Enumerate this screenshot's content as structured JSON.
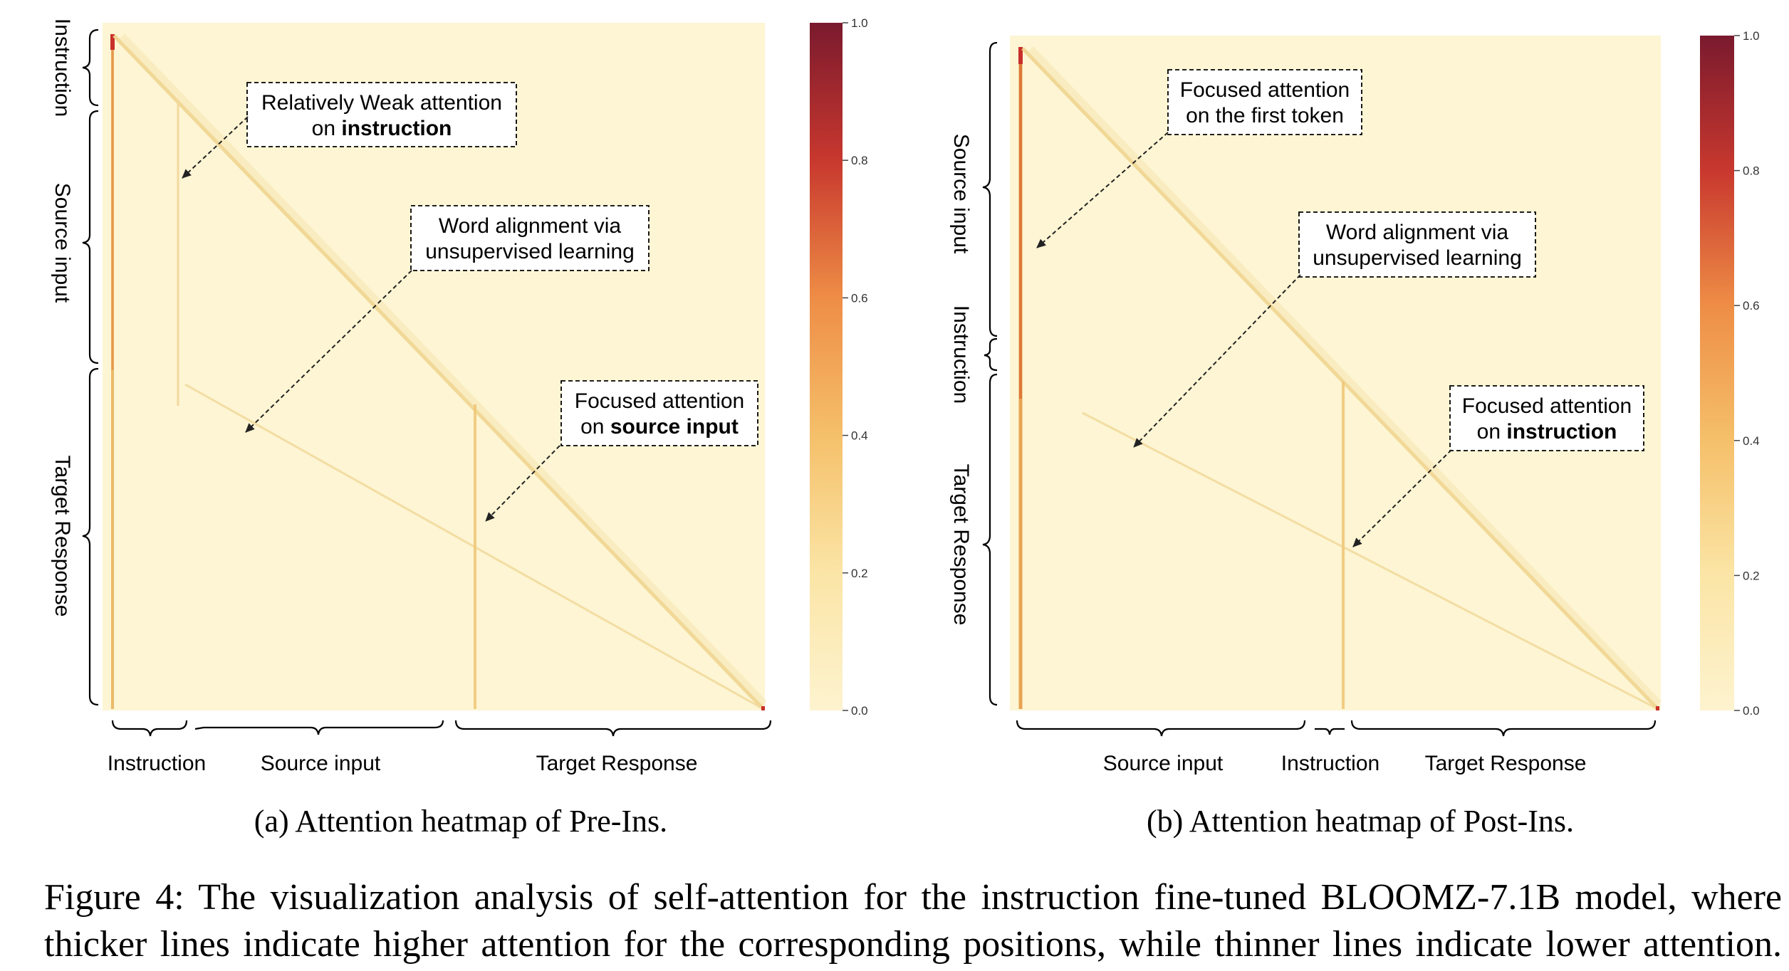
{
  "panels": [
    {
      "id": "a",
      "subcaption": "(a) Attention heatmap of Pre-Ins.",
      "y_groups": [
        "Instruction",
        "Source input",
        "Target Response"
      ],
      "x_groups": [
        "Instruction",
        "Source input",
        "Target Response"
      ],
      "annotations": [
        {
          "lines": [
            [
              "Relatively Weak attention"
            ],
            [
              "on ",
              "instruction"
            ]
          ],
          "bold_last": true
        },
        {
          "lines": [
            [
              "Word alignment via"
            ],
            [
              "unsupervised learning"
            ]
          ],
          "bold_last": false
        },
        {
          "lines": [
            [
              "Focused attention"
            ],
            [
              "on ",
              "source input"
            ]
          ],
          "bold_last": true
        }
      ],
      "colorbar_ticks": [
        "0.0",
        "0.2",
        "0.4",
        "0.6",
        "0.8",
        "1.0"
      ]
    },
    {
      "id": "b",
      "subcaption": "(b) Attention heatmap of Post-Ins.",
      "y_groups": [
        "Source input",
        "Instruction",
        "Target Response"
      ],
      "x_groups": [
        "Source input",
        "Instruction",
        "Target Response"
      ],
      "annotations": [
        {
          "lines": [
            [
              "Focused attention"
            ],
            [
              "on the first token"
            ]
          ],
          "bold_last": false
        },
        {
          "lines": [
            [
              "Word alignment via"
            ],
            [
              "unsupervised learning"
            ]
          ],
          "bold_last": false
        },
        {
          "lines": [
            [
              "Focused attention"
            ],
            [
              "on ",
              "instruction"
            ]
          ],
          "bold_last": true
        }
      ],
      "colorbar_ticks": [
        "0.0",
        "0.2",
        "0.4",
        "0.6",
        "0.8",
        "1.0"
      ]
    }
  ],
  "figure_caption": {
    "line1": "Figure 4: The visualization analysis of self-attention for the instruction fine-tuned BLOOMZ-7.1B model, where",
    "line2": "thicker lines indicate higher attention for the corresponding positions, while thinner lines indicate lower attention."
  },
  "colors": {
    "background_cell": "#fdf5d3",
    "colorbar_low": "#fdf3cf",
    "colorbar_mid": "#f5b25f",
    "colorbar_high": "#7a1a2e"
  }
}
